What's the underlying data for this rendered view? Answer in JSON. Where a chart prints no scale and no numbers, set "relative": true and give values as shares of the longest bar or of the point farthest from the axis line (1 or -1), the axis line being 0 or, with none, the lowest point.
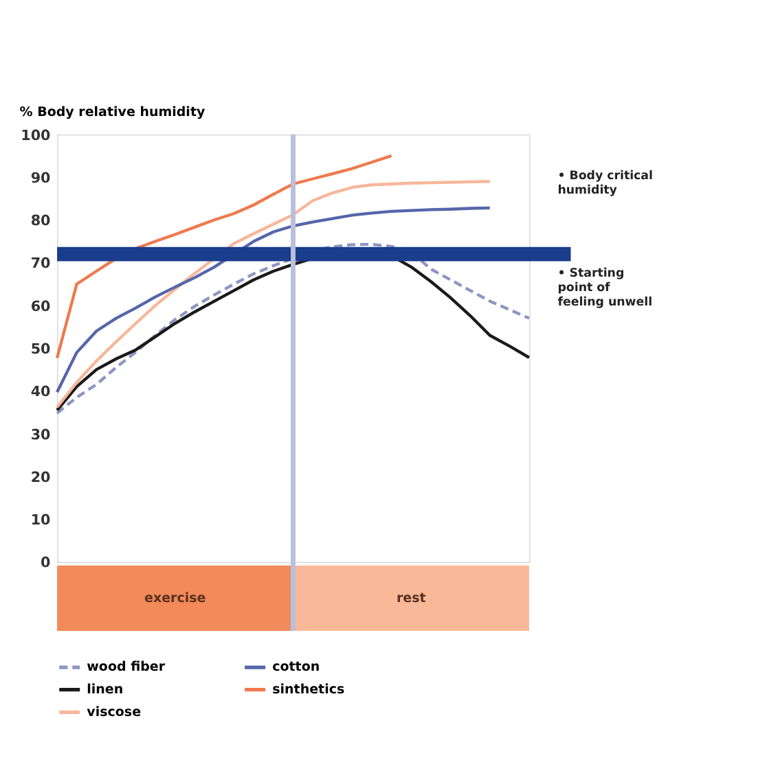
{
  "chart_data": [
    {
      "type": "line",
      "ylabel": "% Body relative humidity",
      "categories": [
        null,
        null,
        null,
        null,
        null,
        null,
        null,
        null,
        null,
        null,
        null,
        null,
        null,
        null,
        null,
        null,
        null,
        null,
        null,
        null,
        null,
        null,
        null,
        null,
        null
      ],
      "ylim": [
        0,
        100
      ],
      "yticks": [
        0,
        10,
        20,
        30,
        40,
        50,
        60,
        70,
        80,
        90,
        100
      ],
      "tick_labels": "y",
      "grid": false,
      "legend": "bottom",
      "series": [
        {
          "name": "wood fiber",
          "color": "#8d96c4",
          "line_style": "dashed",
          "values": [
            34.8,
            38.5,
            41.5,
            45.5,
            49.1,
            53,
            56.7,
            59.8,
            62.5,
            65,
            67.4,
            69.3,
            71,
            72.8,
            73.7,
            74.2,
            74.3,
            73.8,
            72.5,
            68.5,
            66,
            63.5,
            61,
            59,
            57
          ]
        },
        {
          "name": "linen",
          "color": "#1a1a1a",
          "line_style": "solid",
          "values": [
            35.5,
            41,
            45,
            47.5,
            49.6,
            52.7,
            55.8,
            58.5,
            61,
            63.5,
            66,
            68,
            69.6,
            71,
            71.6,
            72,
            72,
            71.6,
            69,
            65.6,
            61.8,
            57.6,
            53,
            50.5,
            47.8
          ]
        },
        {
          "name": "viscose",
          "color": "#f7b79a",
          "line_style": "solid",
          "values": [
            36.2,
            42,
            47,
            51.5,
            55.8,
            60,
            63.8,
            67.5,
            71,
            74.5,
            76.8,
            79,
            81.2,
            84.5,
            86.3,
            87.6,
            88.2,
            88.4,
            88.6,
            88.7,
            88.8,
            88.9,
            89,
            null,
            null
          ]
        },
        {
          "name": "cotton",
          "color": "#5566aa",
          "line_style": "solid",
          "values": [
            39.7,
            49,
            54,
            57,
            59.4,
            62,
            64.3,
            66.5,
            69,
            72,
            75,
            77.2,
            78.6,
            79.5,
            80.3,
            81.1,
            81.6,
            82,
            82.2,
            82.4,
            82.5,
            82.7,
            82.8,
            null,
            null
          ]
        },
        {
          "name": "sinthetics",
          "color": "#ee7a4e",
          "line_style": "solid",
          "values": [
            47.7,
            65,
            68,
            71,
            73.3,
            75,
            76.6,
            78.3,
            80,
            81.5,
            83.5,
            86,
            88.4,
            89.6,
            90.8,
            92,
            93.5,
            95,
            null,
            null,
            null,
            null,
            null,
            null,
            null
          ]
        }
      ],
      "ref_lines": [
        {
          "axis": "y",
          "value": 72,
          "color": "#1a3d8c"
        }
      ],
      "annotations": [
        "• Body critical\nhumidity",
        "• Starting\npoint of\nfeeling unwell"
      ]
    },
    {
      "type": "bar",
      "orientation": "horizontal",
      "stacked": true,
      "relative": true,
      "categories": [
        null
      ],
      "series": [
        {
          "name": "exercise",
          "color": "#f28a5a",
          "values": [
            0.5
          ]
        },
        {
          "name": "rest",
          "color": "#f9b999",
          "values": [
            0.5
          ]
        }
      ],
      "ref_lines": [
        {
          "axis": "x",
          "value": 0.5,
          "color": "#b8c0dc"
        }
      ]
    }
  ]
}
